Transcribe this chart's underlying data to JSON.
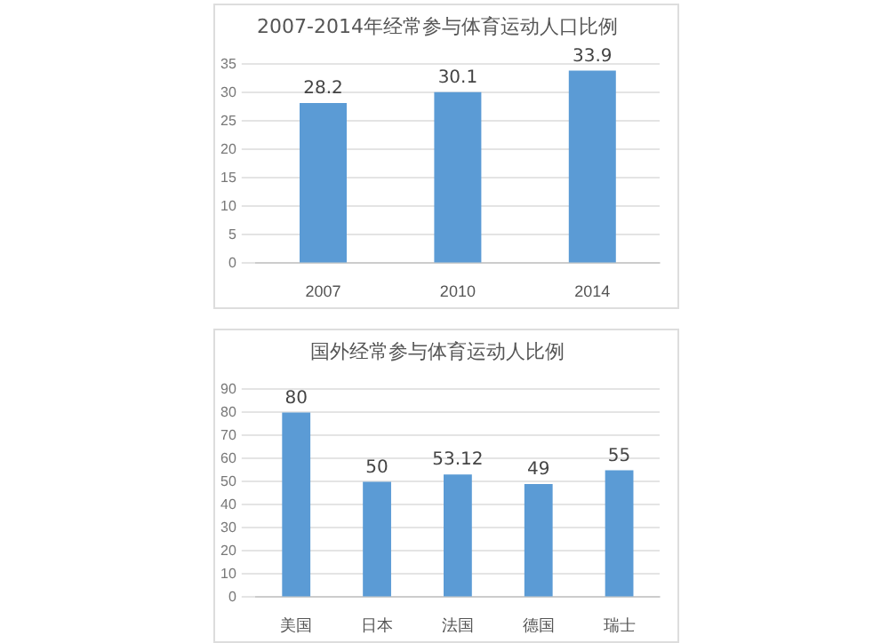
{
  "chart_data": [
    {
      "type": "bar",
      "title": "2007-2014年经常参与体育运动人口比例",
      "categories": [
        "2007",
        "2010",
        "2014"
      ],
      "values": [
        28.2,
        30.1,
        33.9
      ],
      "color": "#5b9bd5",
      "ylim": [
        0,
        35
      ],
      "yticks": [
        0,
        5,
        10,
        15,
        20,
        25,
        30,
        35
      ],
      "grid": "y",
      "data_labels": true
    },
    {
      "type": "bar",
      "title": "国外经常参与体育运动人比例",
      "categories": [
        "美国",
        "日本",
        "法国",
        "德国",
        "瑞士"
      ],
      "values": [
        80,
        50,
        53.12,
        49,
        55
      ],
      "color": "#5b9bd5",
      "ylim": [
        0,
        90
      ],
      "yticks": [
        0,
        10,
        20,
        30,
        40,
        50,
        60,
        70,
        80,
        90
      ],
      "grid": "y",
      "data_labels": true
    }
  ]
}
